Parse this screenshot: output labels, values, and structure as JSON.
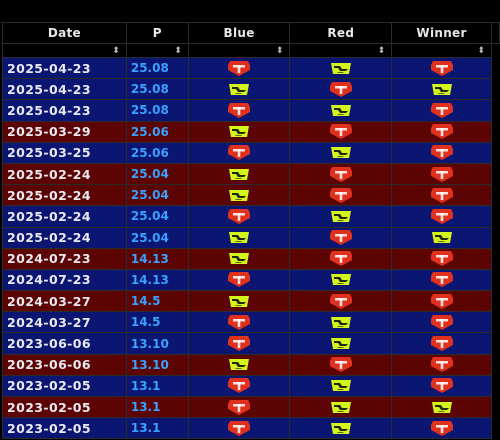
{
  "table": {
    "headers": [
      "Date",
      "P",
      "Blue",
      "Red",
      "Winner"
    ],
    "sort_glyph": "⬍",
    "rows": [
      {
        "date": "2025-04-23",
        "patch": "25.08",
        "blue": "T1",
        "red": "NIP",
        "winner": "T1",
        "side": "blue"
      },
      {
        "date": "2025-04-23",
        "patch": "25.08",
        "blue": "NIP",
        "red": "T1",
        "winner": "NIP",
        "side": "blue"
      },
      {
        "date": "2025-04-23",
        "patch": "25.08",
        "blue": "T1",
        "red": "NIP",
        "winner": "T1",
        "side": "blue"
      },
      {
        "date": "2025-03-29",
        "patch": "25.06",
        "blue": "NIP",
        "red": "T1",
        "winner": "T1",
        "side": "red"
      },
      {
        "date": "2025-03-25",
        "patch": "25.06",
        "blue": "T1",
        "red": "NIP",
        "winner": "T1",
        "side": "blue"
      },
      {
        "date": "2025-02-24",
        "patch": "25.04",
        "blue": "NIP",
        "red": "T1",
        "winner": "T1",
        "side": "red"
      },
      {
        "date": "2025-02-24",
        "patch": "25.04",
        "blue": "NIP",
        "red": "T1",
        "winner": "T1",
        "side": "red"
      },
      {
        "date": "2025-02-24",
        "patch": "25.04",
        "blue": "T1",
        "red": "NIP",
        "winner": "T1",
        "side": "blue"
      },
      {
        "date": "2025-02-24",
        "patch": "25.04",
        "blue": "NIP",
        "red": "T1",
        "winner": "NIP",
        "side": "blue"
      },
      {
        "date": "2024-07-23",
        "patch": "14.13",
        "blue": "NIP",
        "red": "T1",
        "winner": "T1",
        "side": "red"
      },
      {
        "date": "2024-07-23",
        "patch": "14.13",
        "blue": "T1",
        "red": "NIP",
        "winner": "T1",
        "side": "blue"
      },
      {
        "date": "2024-03-27",
        "patch": "14.5",
        "blue": "NIP",
        "red": "T1",
        "winner": "T1",
        "side": "red"
      },
      {
        "date": "2024-03-27",
        "patch": "14.5",
        "blue": "T1",
        "red": "NIP",
        "winner": "T1",
        "side": "blue"
      },
      {
        "date": "2023-06-06",
        "patch": "13.10",
        "blue": "T1",
        "red": "NIP",
        "winner": "T1",
        "side": "blue"
      },
      {
        "date": "2023-06-06",
        "patch": "13.10",
        "blue": "NIP",
        "red": "T1",
        "winner": "T1",
        "side": "red"
      },
      {
        "date": "2023-02-05",
        "patch": "13.1",
        "blue": "T1",
        "red": "NIP",
        "winner": "T1",
        "side": "blue"
      },
      {
        "date": "2023-02-05",
        "patch": "13.1",
        "blue": "T1",
        "red": "NIP",
        "winner": "NIP",
        "side": "red"
      },
      {
        "date": "2023-02-05",
        "patch": "13.1",
        "blue": "T1",
        "red": "NIP",
        "winner": "T1",
        "side": "blue"
      }
    ]
  },
  "colors": {
    "row_blue": "#0b1572",
    "row_red": "#5c0304",
    "patch_text": "#3aa1ff",
    "t1_logo": "#e0301e",
    "nip_logo": "#d4f51c"
  },
  "icons": {
    "T1": "t1-logo-icon",
    "NIP": "ninjas-in-pyjamas-logo-icon"
  }
}
